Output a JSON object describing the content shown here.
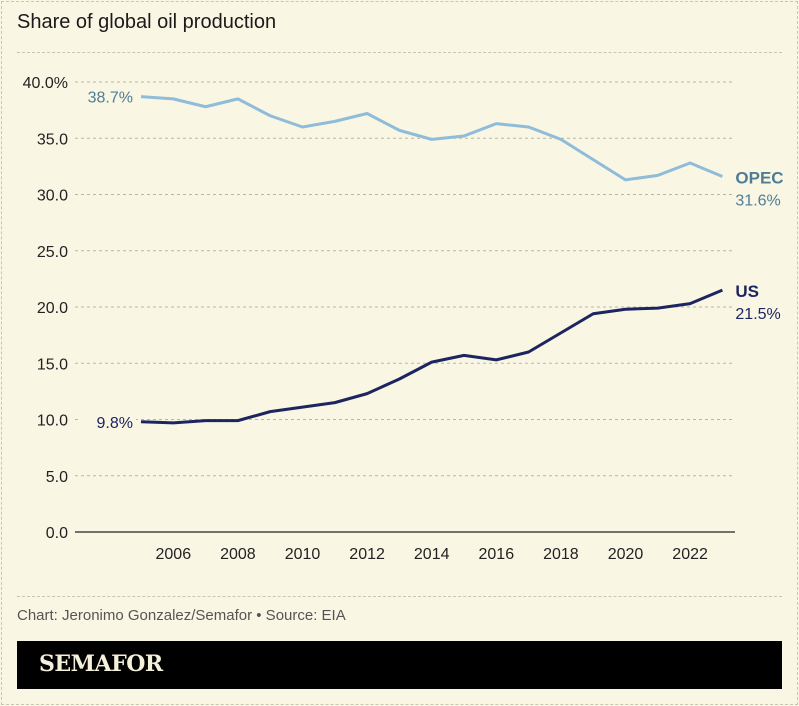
{
  "title": "Share of global oil production",
  "credit": "Chart: Jeronimo Gonzalez/Semafor • Source: EIA",
  "logo": "SEMAFOR",
  "chart_data": {
    "type": "line",
    "title": "Share of global oil production",
    "ylim": [
      0,
      40
    ],
    "yticks": [
      0,
      5,
      10,
      15,
      20,
      25,
      30,
      35,
      40
    ],
    "ytick_labels": [
      "0.0",
      "5.0",
      "10.0",
      "15.0",
      "20.0",
      "25.0",
      "30.0",
      "35.0",
      "40.0%"
    ],
    "xticks": [
      2006,
      2008,
      2010,
      2012,
      2014,
      2016,
      2018,
      2020,
      2022
    ],
    "xtick_labels": [
      "2006",
      "2008",
      "2010",
      "2012",
      "2014",
      "2016",
      "2018",
      "2020",
      "2022"
    ],
    "grid": "horizontal dashed",
    "x": [
      2005,
      2006,
      2007,
      2008,
      2009,
      2010,
      2011,
      2012,
      2013,
      2014,
      2015,
      2016,
      2017,
      2018,
      2019,
      2020,
      2021,
      2022,
      2023
    ],
    "series": [
      {
        "name": "OPEC",
        "color": "#8fbcd8",
        "label_color": "#4f7d95",
        "start_label": "38.7%",
        "end_label": "31.6%",
        "values": [
          38.7,
          38.5,
          37.8,
          38.5,
          37.0,
          36.0,
          36.5,
          37.2,
          35.7,
          34.9,
          35.2,
          36.3,
          36.0,
          34.9,
          33.1,
          31.3,
          31.7,
          32.8,
          31.6
        ]
      },
      {
        "name": "US",
        "color": "#1d2560",
        "label_color": "#1d2560",
        "start_label": "9.8%",
        "end_label": "21.5%",
        "values": [
          9.8,
          9.7,
          9.9,
          9.9,
          10.7,
          11.1,
          11.5,
          12.3,
          13.6,
          15.1,
          15.7,
          15.3,
          16.0,
          17.7,
          19.4,
          19.8,
          19.9,
          20.3,
          21.5
        ]
      }
    ]
  }
}
